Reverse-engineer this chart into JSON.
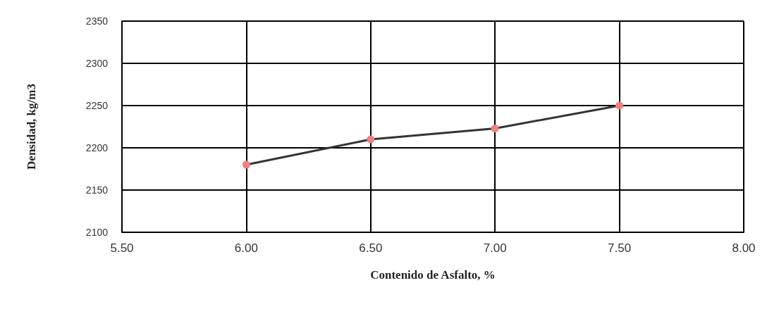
{
  "chart_data": {
    "type": "line",
    "xlabel": "Contenido de Asfalto, %",
    "ylabel": "Densidad, kg/m3",
    "x": [
      6.0,
      6.5,
      7.0,
      7.5
    ],
    "series": [
      {
        "color": "#333333",
        "colors": [
          "#f08080",
          "#f08080",
          "#f08080",
          "#f08080"
        ],
        "values": [
          2180,
          2210,
          2223,
          2250
        ]
      }
    ],
    "marker": "circle",
    "xlim": [
      5.5,
      8.0
    ],
    "xticks": [
      {
        "value": 5.5,
        "label": "5.50"
      },
      {
        "value": 6.0,
        "label": "6.00"
      },
      {
        "value": 6.5,
        "label": "6.50"
      },
      {
        "value": 7.0,
        "label": "7.00"
      },
      {
        "value": 7.5,
        "label": "7.50"
      },
      {
        "value": 8.0,
        "label": "8.00"
      }
    ],
    "ylim": [
      2100,
      2350
    ],
    "yticks": [
      2100,
      2150,
      2200,
      2250,
      2300,
      2350
    ],
    "grid": true
  }
}
